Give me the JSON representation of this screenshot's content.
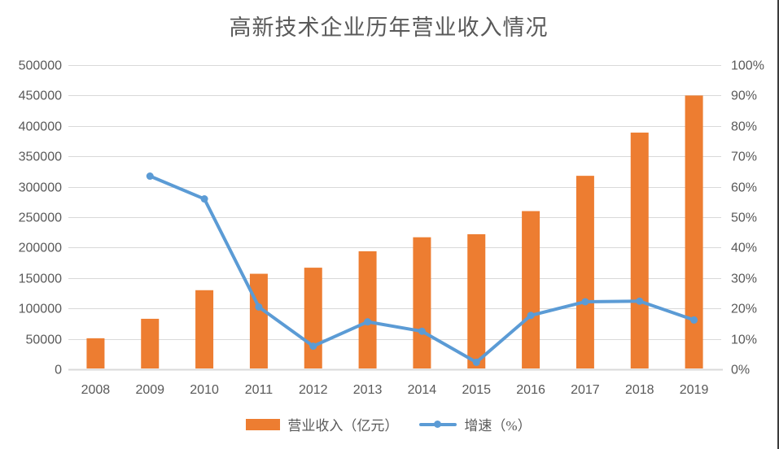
{
  "chart_data": {
    "type": "combo-bar-line",
    "title": "高新技术企业历年营业收入情况",
    "categories": [
      "2008",
      "2009",
      "2010",
      "2011",
      "2012",
      "2013",
      "2014",
      "2015",
      "2016",
      "2017",
      "2018",
      "2019"
    ],
    "series": [
      {
        "name": "营业收入（亿元）",
        "type": "bar",
        "axis": "left",
        "color": "#ED7D31",
        "values": [
          51000,
          83000,
          130000,
          157000,
          167000,
          194000,
          217000,
          222000,
          260000,
          318000,
          389000,
          450000
        ]
      },
      {
        "name": "增速（%）",
        "type": "line",
        "axis": "right",
        "color": "#5B9BD5",
        "values": [
          null,
          63.5,
          56.0,
          20.5,
          7.6,
          15.6,
          12.5,
          2.3,
          17.7,
          22.2,
          22.4,
          16.2
        ]
      }
    ],
    "left_axis": {
      "min": 0,
      "max": 500000,
      "step": 50000,
      "tick_labels": [
        "0",
        "50000",
        "100000",
        "150000",
        "200000",
        "250000",
        "300000",
        "350000",
        "400000",
        "450000",
        "500000"
      ]
    },
    "right_axis": {
      "min": 0,
      "max": 100,
      "step": 10,
      "tick_labels": [
        "0%",
        "10%",
        "20%",
        "30%",
        "40%",
        "50%",
        "60%",
        "70%",
        "80%",
        "90%",
        "100%"
      ]
    },
    "grid": true,
    "legend_position": "bottom",
    "colors": {
      "gridline": "#D9D9D9",
      "axis_text": "#595959",
      "title_text": "#595959",
      "background": "#FFFFFF",
      "frame_edge": "#3C3C3C"
    }
  }
}
